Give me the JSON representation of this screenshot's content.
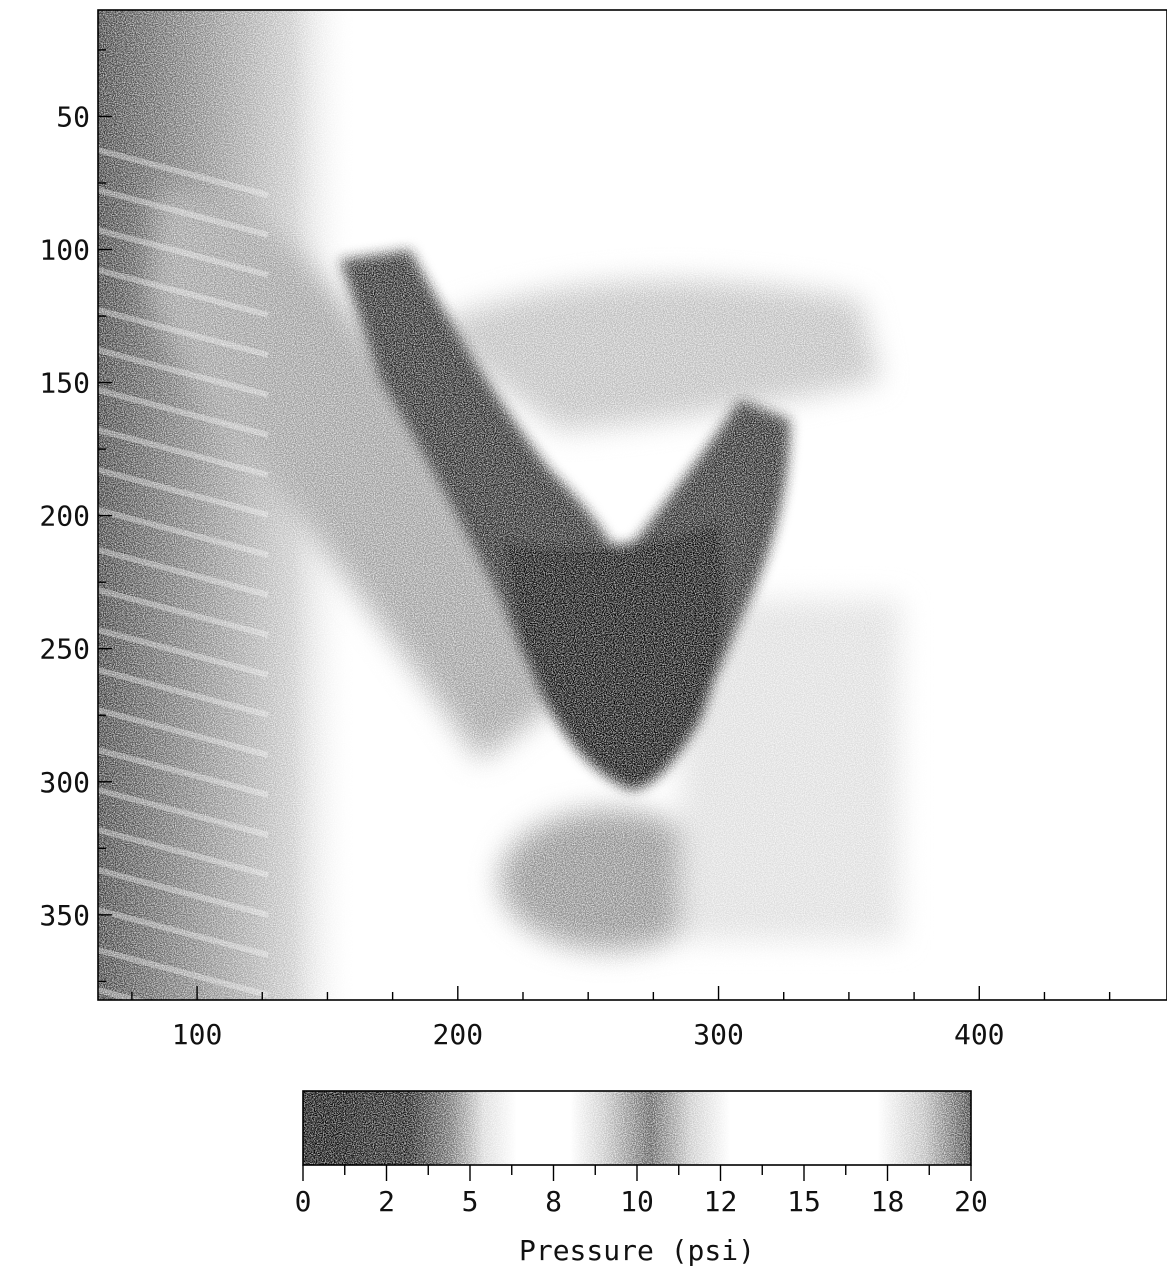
{
  "chart_data": [
    {
      "type": "heatmap",
      "title": "",
      "xlabel": "",
      "ylabel": "",
      "xlim": [
        62,
        472
      ],
      "ylim": [
        10,
        382
      ],
      "y_inverted": true,
      "xticks": [
        100,
        200,
        300,
        400
      ],
      "yticks": [
        50,
        100,
        150,
        200,
        250,
        300,
        350
      ],
      "grayscale": true,
      "features": [
        {
          "name": "v-shaped dark pressure region",
          "vertex": [
            262,
            280
          ],
          "left_arm_top": [
            165,
            110
          ],
          "right_arm_top": [
            325,
            160
          ],
          "level": "high"
        },
        {
          "name": "left edge striated band",
          "x_range": [
            62,
            150
          ],
          "level": "medium"
        },
        {
          "name": "lower blob",
          "center": [
            265,
            335
          ],
          "level": "medium"
        },
        {
          "name": "right region",
          "x_range": [
            350,
            472
          ],
          "level": "low"
        }
      ]
    },
    {
      "type": "colorbar",
      "label": "Pressure (psi)",
      "range": [
        0,
        20
      ],
      "tick_labels": [
        "0",
        "2",
        "5",
        "8",
        "10",
        "12",
        "15",
        "18",
        "20"
      ],
      "tick_values": [
        0,
        2.5,
        5,
        7.5,
        10,
        12.5,
        15,
        17.5,
        20
      ]
    }
  ]
}
